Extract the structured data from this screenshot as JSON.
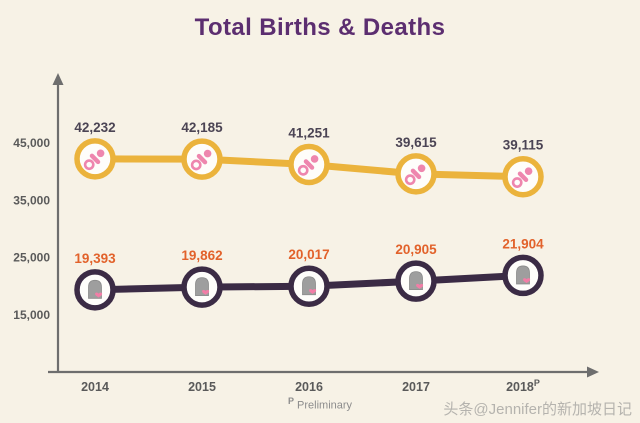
{
  "title": "Total Births & Deaths",
  "watermark": "头条@Jennifer的新加坡日记",
  "footnote": {
    "sup": "P",
    "text": " Preliminary"
  },
  "colors": {
    "background": "#F7F2E6",
    "title": "#5C2E70",
    "axis": "#6E6E6E",
    "tick_label": "#5A5A5A",
    "footnote": "#8C8C8C",
    "watermark": "#B5B3AE",
    "marker_fill": "#FEFDFA"
  },
  "chart_data": {
    "type": "line",
    "title": "Total Births & Deaths",
    "categories": [
      "2014",
      "2015",
      "2016",
      "2017",
      "2018"
    ],
    "x_superscripts": [
      "",
      "",
      "",
      "",
      "P"
    ],
    "yticks": [
      45000,
      35000,
      25000,
      15000
    ],
    "ylim": [
      5000,
      57000
    ],
    "grid": false,
    "legend": false,
    "series": [
      {
        "name": "Births",
        "icon": "pacifier-icon",
        "color": "#EBB33C",
        "icon_color": "#EE86AE",
        "label_color": "#4B4454",
        "values": [
          42232,
          42185,
          41251,
          39615,
          39115
        ]
      },
      {
        "name": "Deaths",
        "icon": "tombstone-icon",
        "color": "#3B2B45",
        "icon_color": "#9E9E9E",
        "heart_color": "#F27DA6",
        "label_color": "#E2622B",
        "values": [
          19393,
          19862,
          20017,
          20905,
          21904
        ]
      }
    ]
  }
}
